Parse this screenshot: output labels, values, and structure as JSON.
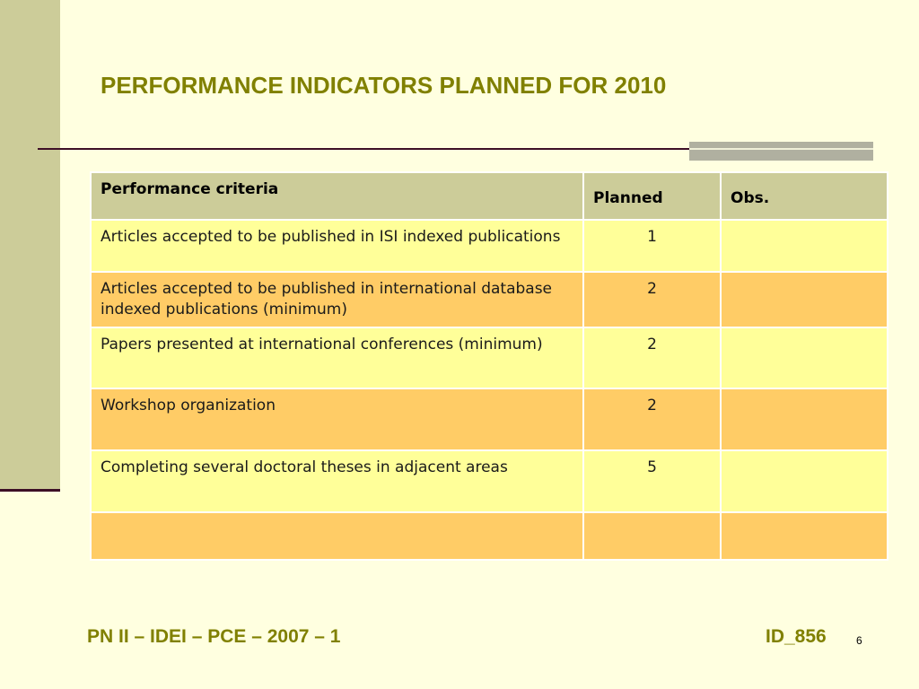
{
  "slide": {
    "title": "PERFORMANCE INDICATORS PLANNED FOR 2010",
    "footer_left": "PN II – IDEI – PCE – 2007 – 1",
    "footer_right": "ID_856",
    "page_number": "6"
  },
  "table": {
    "headers": [
      "Performance criteria",
      "Planned",
      "Obs."
    ],
    "rows": [
      {
        "criteria": "Articles accepted to be published in ISI indexed publications",
        "planned": "1",
        "obs": ""
      },
      {
        "criteria": "Articles accepted to be published in international database indexed publications (minimum)",
        "planned": "2",
        "obs": ""
      },
      {
        "criteria": "Papers presented at international conferences (minimum)",
        "planned": "2",
        "obs": ""
      },
      {
        "criteria": "Workshop organization",
        "planned": "2",
        "obs": ""
      },
      {
        "criteria": "Completing several doctoral theses in adjacent areas",
        "planned": "5",
        "obs": ""
      },
      {
        "criteria": "",
        "planned": "",
        "obs": ""
      }
    ]
  },
  "colors": {
    "background": "#FFFFE0",
    "accent_bar": "#CCCC99",
    "title_text": "#808000",
    "rule": "#3D0F26",
    "row_light": "#FFFF99",
    "row_dark": "#FFCC66"
  }
}
